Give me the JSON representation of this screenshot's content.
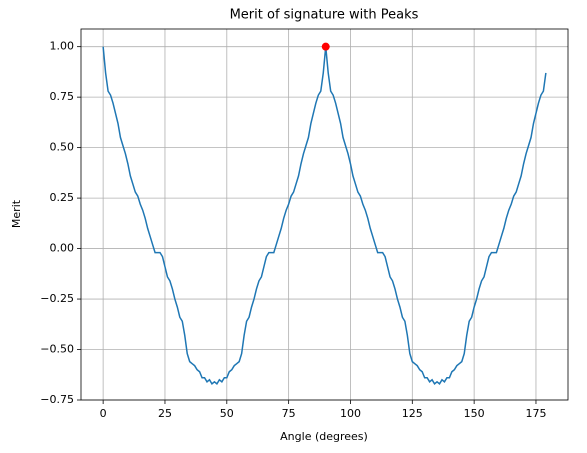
{
  "chart_data": {
    "type": "line",
    "title": "Merit of signature with Peaks",
    "xlabel": "Angle (degrees)",
    "ylabel": "Merit",
    "x": [
      0,
      1,
      2,
      3,
      4,
      5,
      6,
      7,
      8,
      9,
      10,
      11,
      12,
      13,
      14,
      15,
      16,
      17,
      18,
      19,
      20,
      21,
      22,
      23,
      24,
      25,
      26,
      27,
      28,
      29,
      30,
      31,
      32,
      33,
      34,
      35,
      36,
      37,
      38,
      39,
      40,
      41,
      42,
      43,
      44,
      45,
      46,
      47,
      48,
      49,
      50,
      51,
      52,
      53,
      54,
      55,
      56,
      57,
      58,
      59,
      60,
      61,
      62,
      63,
      64,
      65,
      66,
      67,
      68,
      69,
      70,
      71,
      72,
      73,
      74,
      75,
      76,
      77,
      78,
      79,
      80,
      81,
      82,
      83,
      84,
      85,
      86,
      87,
      88,
      89,
      90,
      91,
      92,
      93,
      94,
      95,
      96,
      97,
      98,
      99,
      100,
      101,
      102,
      103,
      104,
      105,
      106,
      107,
      108,
      109,
      110,
      111,
      112,
      113,
      114,
      115,
      116,
      117,
      118,
      119,
      120,
      121,
      122,
      123,
      124,
      125,
      126,
      127,
      128,
      129,
      130,
      131,
      132,
      133,
      134,
      135,
      136,
      137,
      138,
      139,
      140,
      141,
      142,
      143,
      144,
      145,
      146,
      147,
      148,
      149,
      150,
      151,
      152,
      153,
      154,
      155,
      156,
      157,
      158,
      159,
      160,
      161,
      162,
      163,
      164,
      165,
      166,
      167,
      168,
      169,
      170,
      171,
      172,
      173,
      174,
      175,
      176,
      177,
      178,
      179
    ],
    "series": [
      {
        "color": "#1f77b4",
        "values": [
          1.0,
          0.87,
          0.78,
          0.76,
          0.72,
          0.67,
          0.62,
          0.55,
          0.51,
          0.47,
          0.42,
          0.36,
          0.32,
          0.28,
          0.26,
          0.22,
          0.19,
          0.15,
          0.1,
          0.06,
          0.02,
          -0.02,
          -0.02,
          -0.02,
          -0.04,
          -0.09,
          -0.14,
          -0.16,
          -0.2,
          -0.25,
          -0.29,
          -0.34,
          -0.36,
          -0.43,
          -0.52,
          -0.56,
          -0.57,
          -0.58,
          -0.6,
          -0.61,
          -0.64,
          -0.64,
          -0.66,
          -0.65,
          -0.67,
          -0.66,
          -0.67,
          -0.65,
          -0.66,
          -0.64,
          -0.64,
          -0.61,
          -0.6,
          -0.58,
          -0.57,
          -0.56,
          -0.52,
          -0.43,
          -0.36,
          -0.34,
          -0.29,
          -0.25,
          -0.2,
          -0.16,
          -0.14,
          -0.09,
          -0.04,
          -0.02,
          -0.02,
          -0.02,
          0.02,
          0.06,
          0.1,
          0.15,
          0.19,
          0.22,
          0.26,
          0.28,
          0.32,
          0.36,
          0.42,
          0.47,
          0.51,
          0.55,
          0.62,
          0.67,
          0.72,
          0.76,
          0.78,
          0.87,
          1.0,
          0.87,
          0.78,
          0.76,
          0.72,
          0.67,
          0.62,
          0.55,
          0.51,
          0.47,
          0.42,
          0.36,
          0.32,
          0.28,
          0.26,
          0.22,
          0.19,
          0.15,
          0.1,
          0.06,
          0.02,
          -0.02,
          -0.02,
          -0.02,
          -0.04,
          -0.09,
          -0.14,
          -0.16,
          -0.2,
          -0.25,
          -0.29,
          -0.34,
          -0.36,
          -0.43,
          -0.52,
          -0.56,
          -0.57,
          -0.58,
          -0.6,
          -0.61,
          -0.64,
          -0.64,
          -0.66,
          -0.65,
          -0.67,
          -0.66,
          -0.67,
          -0.65,
          -0.66,
          -0.64,
          -0.64,
          -0.61,
          -0.6,
          -0.58,
          -0.57,
          -0.56,
          -0.52,
          -0.43,
          -0.36,
          -0.34,
          -0.29,
          -0.25,
          -0.2,
          -0.16,
          -0.14,
          -0.09,
          -0.04,
          -0.02,
          -0.02,
          -0.02,
          0.02,
          0.06,
          0.1,
          0.15,
          0.19,
          0.22,
          0.26,
          0.28,
          0.32,
          0.36,
          0.42,
          0.47,
          0.51,
          0.55,
          0.62,
          0.67,
          0.72,
          0.76,
          0.78,
          0.87
        ]
      }
    ],
    "peaks": {
      "color": "#ff0000",
      "x": [
        90
      ],
      "values": [
        1.0
      ]
    },
    "xlim": [
      -8.95,
      187.95
    ],
    "ylim": [
      -0.75,
      1.0875
    ],
    "xticks": [
      0,
      25,
      50,
      75,
      100,
      125,
      150,
      175
    ],
    "yticks": [
      {
        "value": -0.75,
        "label": "−0.75"
      },
      {
        "value": -0.5,
        "label": "−0.50"
      },
      {
        "value": -0.25,
        "label": "−0.25"
      },
      {
        "value": 0,
        "label": "0.00"
      },
      0.25,
      {
        "value": 0.5,
        "label": "0.50"
      },
      0.75,
      {
        "value": 1,
        "label": "1.00"
      }
    ],
    "grid": true
  }
}
